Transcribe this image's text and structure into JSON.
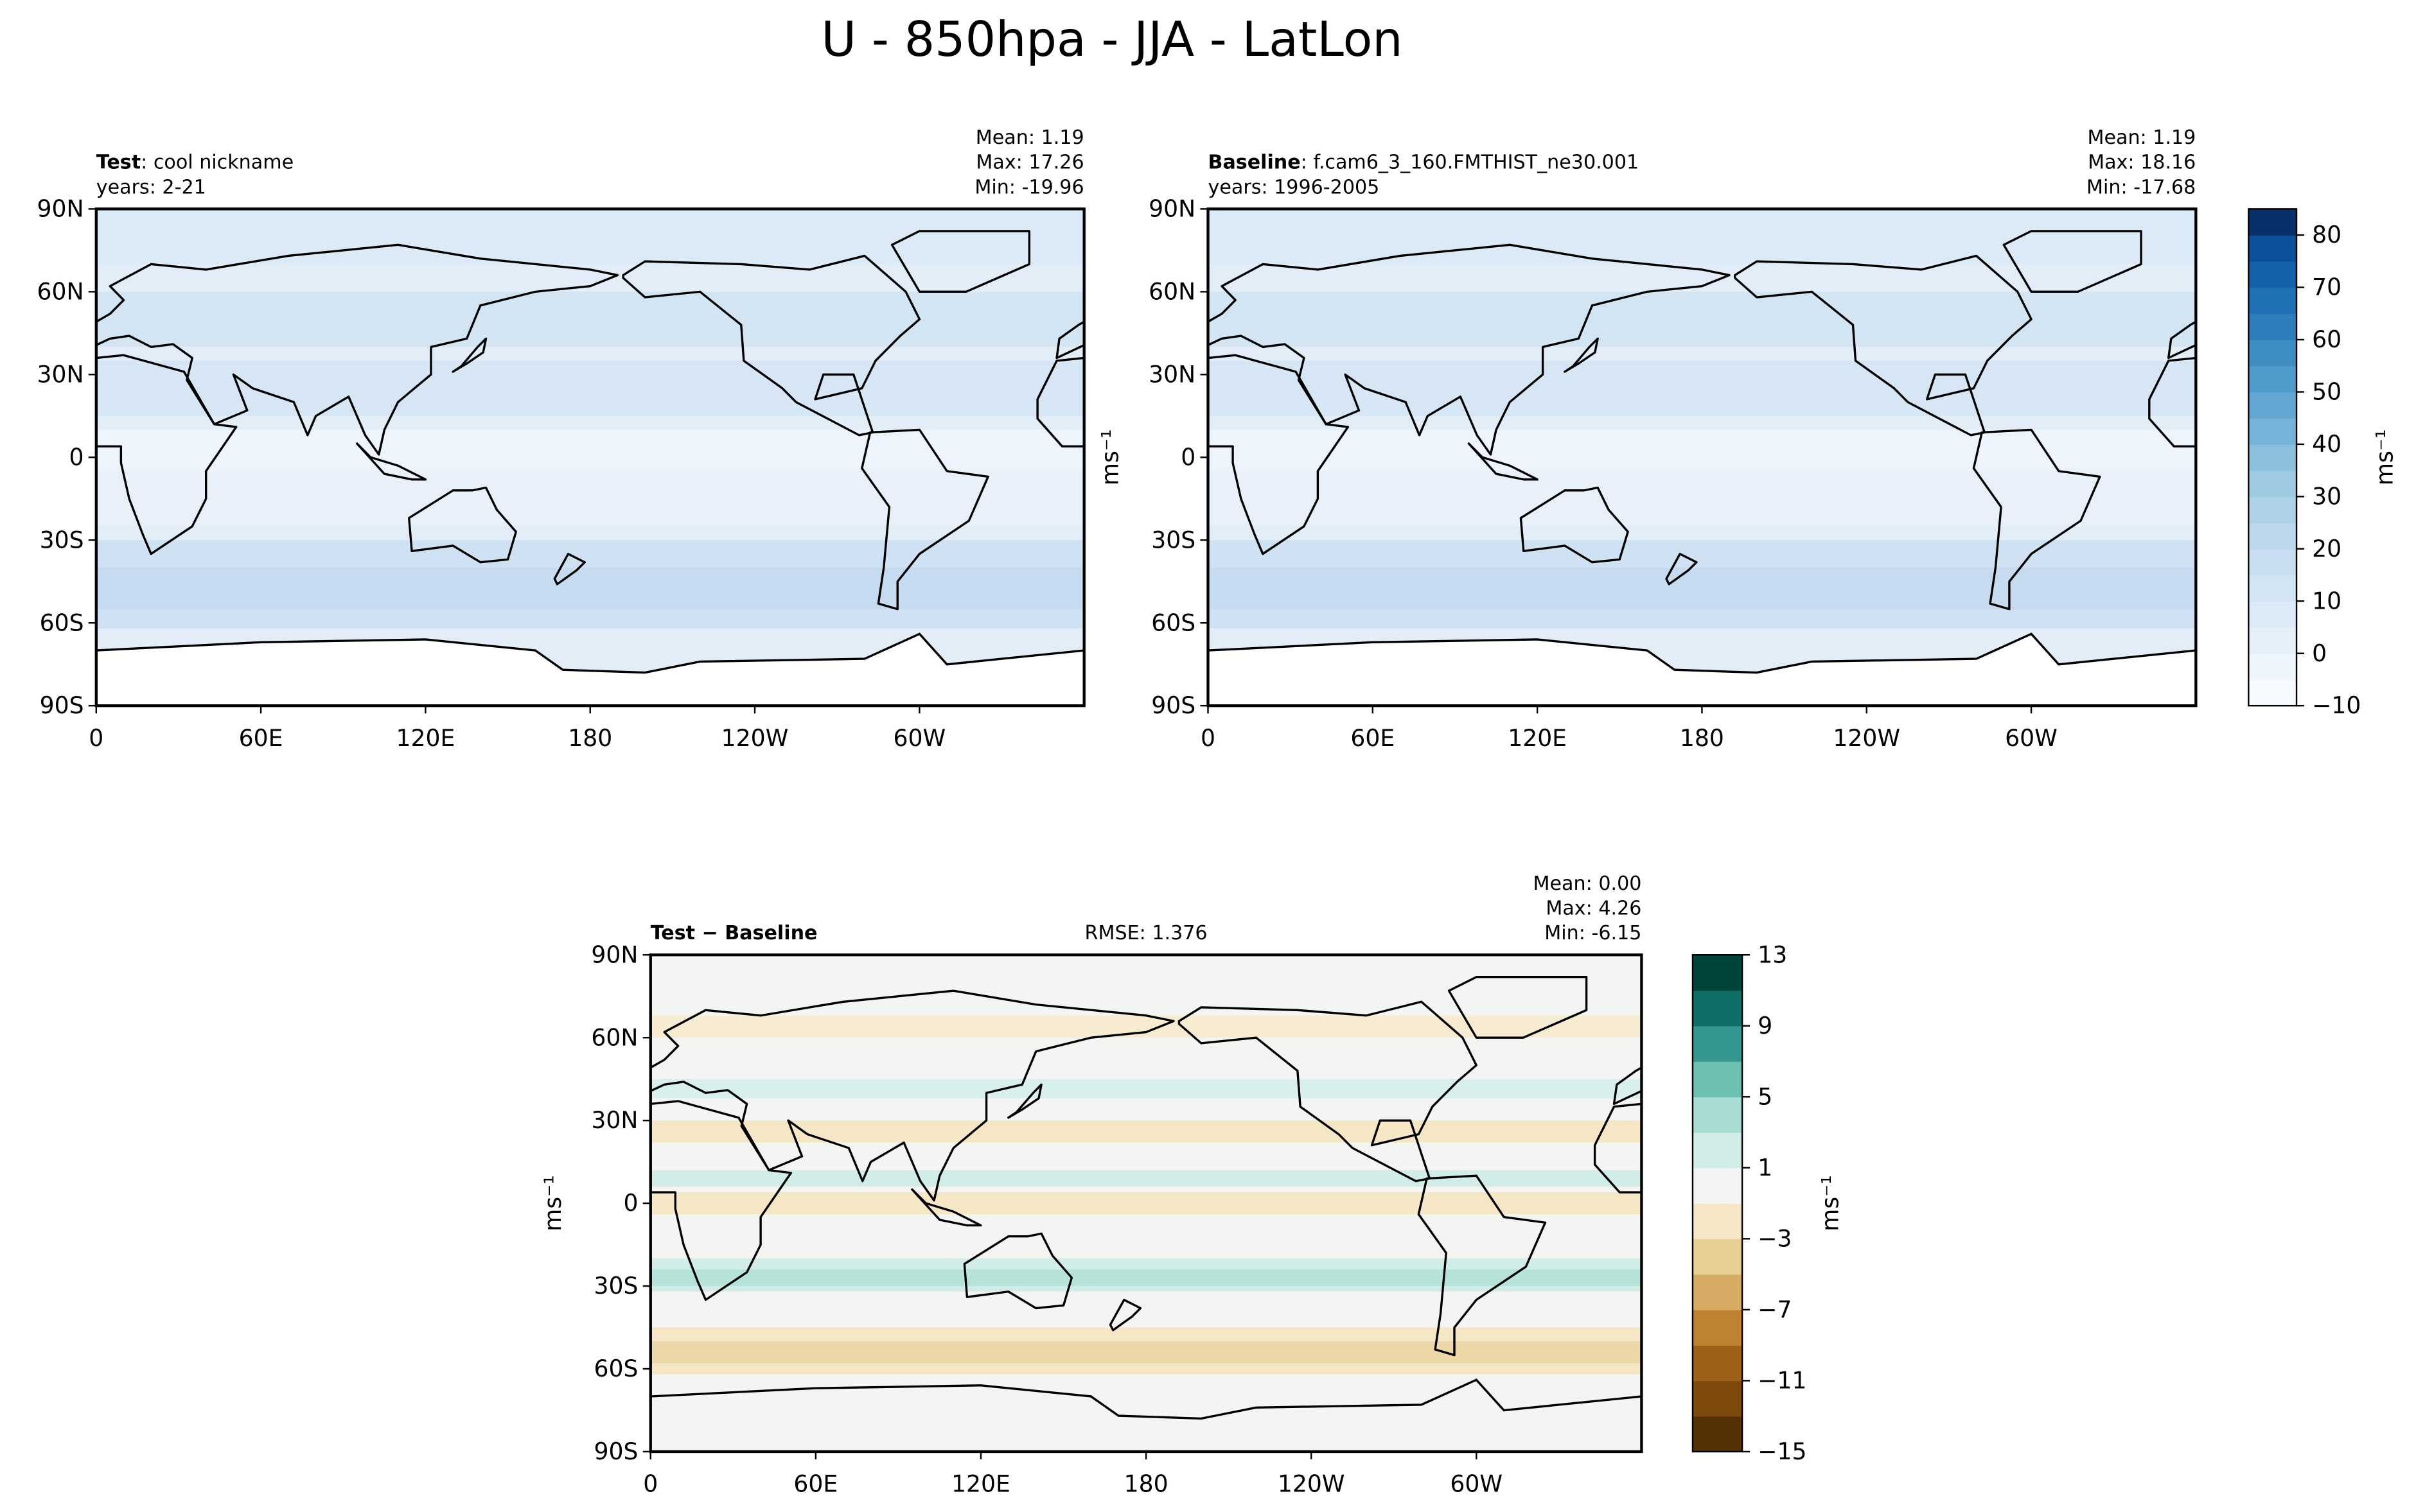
{
  "suptitle": "U - 850hpa - JJA - LatLon",
  "chart_data": [
    {
      "type": "contour-map",
      "title_bold": "Test",
      "title": ": cool nickname",
      "subtitle": "years: 2-21",
      "stats": [
        {
          "name": "Mean:",
          "value": 1.19
        },
        {
          "name": "Max:",
          "value": 17.26
        },
        {
          "name": "Min:",
          "value": -19.96
        }
      ],
      "xlim": [
        0,
        360
      ],
      "xticks": [
        0,
        {
          "value": 60,
          "label": "60E"
        },
        {
          "value": 120,
          "label": "120E"
        },
        180,
        {
          "value": 240,
          "label": "120W"
        },
        {
          "value": 300,
          "label": "60W"
        }
      ],
      "ylim": [
        -90,
        90
      ],
      "yticks": [
        {
          "value": -90,
          "label": "90S"
        },
        {
          "value": -60,
          "label": "60S"
        },
        {
          "value": -30,
          "label": "30S"
        },
        0,
        {
          "value": 30,
          "label": "30N"
        },
        {
          "value": 60,
          "label": "60N"
        },
        {
          "value": 90,
          "label": "90N"
        }
      ],
      "palette": "blues"
    },
    {
      "type": "contour-map",
      "title_bold": "Baseline",
      "title": ": f.cam6_3_160.FMTHIST_ne30.001",
      "subtitle": "years: 1996-2005",
      "stats": [
        {
          "name": "Mean:",
          "value": 1.19
        },
        {
          "name": "Max:",
          "value": 18.16
        },
        {
          "name": "Min:",
          "value": -17.68
        }
      ],
      "ylabel": "ms⁻¹",
      "xlim": [
        0,
        360
      ],
      "xticks": [
        0,
        {
          "value": 60,
          "label": "60E"
        },
        {
          "value": 120,
          "label": "120E"
        },
        180,
        {
          "value": 240,
          "label": "120W"
        },
        {
          "value": 300,
          "label": "60W"
        }
      ],
      "ylim": [
        -90,
        90
      ],
      "yticks": [
        {
          "value": -90,
          "label": "90S"
        },
        {
          "value": -60,
          "label": "60S"
        },
        {
          "value": -30,
          "label": "30S"
        },
        0,
        {
          "value": 30,
          "label": "30N"
        },
        {
          "value": 60,
          "label": "60N"
        },
        {
          "value": 90,
          "label": "90N"
        }
      ],
      "palette": "blues",
      "colorbar": {
        "label": "ms⁻¹",
        "levels": [
          -10,
          -5,
          0,
          5,
          10,
          15,
          20,
          25,
          30,
          35,
          40,
          45,
          50,
          55,
          60,
          65,
          70,
          75,
          80,
          85
        ],
        "colors": [
          "#f7fbff",
          "#eef5fc",
          "#e5eff9",
          "#dce9f6",
          "#d3e4f3",
          "#c9ddf0",
          "#bdd7ec",
          "#aed1e7",
          "#9ecae1",
          "#8bbfdc",
          "#75b4d8",
          "#61a7d2",
          "#4f9bcb",
          "#3e8ec4",
          "#2f7ebc",
          "#2070b4",
          "#1561a9",
          "#0b519a",
          "#08306b"
        ],
        "ticks": [
          {
            "value": -10,
            "label": "−10"
          },
          0,
          10,
          20,
          30,
          40,
          50,
          60,
          70,
          80
        ]
      }
    },
    {
      "type": "contour-map",
      "title_bold": "Test − Baseline",
      "rmse_label": "RMSE:",
      "rmse": 1.376,
      "stats": [
        {
          "name": "Mean:",
          "value": 0,
          "label": "0.00"
        },
        {
          "name": "Max:",
          "value": 4.26
        },
        {
          "name": "Min:",
          "value": -6.15
        }
      ],
      "ylabel": "ms⁻¹",
      "xlim": [
        0,
        360
      ],
      "xticks": [
        0,
        {
          "value": 60,
          "label": "60E"
        },
        {
          "value": 120,
          "label": "120E"
        },
        180,
        {
          "value": 240,
          "label": "120W"
        },
        {
          "value": 300,
          "label": "60W"
        }
      ],
      "ylim": [
        -90,
        90
      ],
      "yticks": [
        {
          "value": -90,
          "label": "90S"
        },
        {
          "value": -60,
          "label": "60S"
        },
        {
          "value": -30,
          "label": "30S"
        },
        0,
        {
          "value": 30,
          "label": "30N"
        },
        {
          "value": 60,
          "label": "60N"
        },
        {
          "value": 90,
          "label": "90N"
        }
      ],
      "palette": "diff",
      "colorbar": {
        "label": "ms⁻¹",
        "levels": [
          -15,
          -13,
          -11,
          -9,
          -7,
          -5,
          -3,
          -1,
          1,
          3,
          5,
          7,
          9,
          11,
          13
        ],
        "colors": [
          "#543005",
          "#7d4a0c",
          "#9c6018",
          "#bf8233",
          "#d6ab63",
          "#e8cf94",
          "#f5e7c6",
          "#f4f4f2",
          "#d2ede8",
          "#a7dcd2",
          "#6cbfb1",
          "#35978f",
          "#0f6f67",
          "#01443c"
        ],
        "ticks": [
          {
            "value": -15,
            "label": "−15"
          },
          {
            "value": -11,
            "label": "−11"
          },
          {
            "value": -7,
            "label": "−7"
          },
          {
            "value": -3,
            "label": "−3"
          },
          1,
          5,
          9,
          13
        ]
      }
    }
  ]
}
